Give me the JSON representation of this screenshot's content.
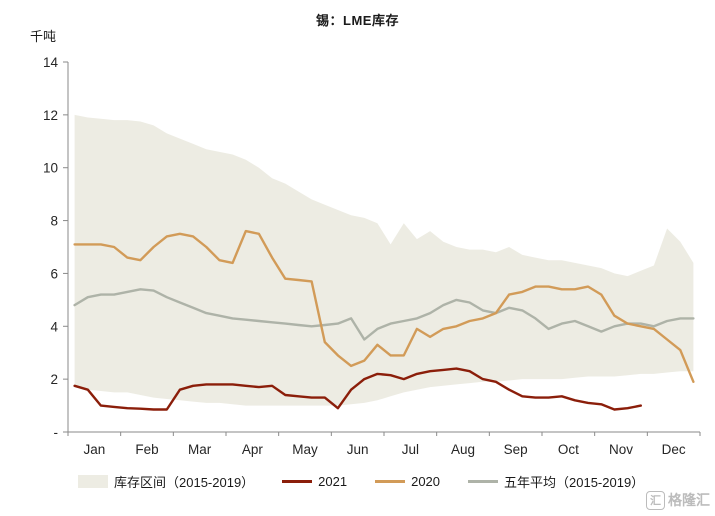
{
  "title": "锡：LME库存",
  "unit_label": "千吨",
  "colors": {
    "band": "#edece3",
    "s2021": "#8b1e0a",
    "s2020": "#d29b58",
    "avg": "#aeb3a8",
    "axis": "#8a8a8a"
  },
  "legend": [
    {
      "label": "库存区间（2015-2019）",
      "type": "band",
      "color_key": "band"
    },
    {
      "label": "2021",
      "type": "line",
      "color_key": "s2021"
    },
    {
      "label": "2020",
      "type": "line",
      "color_key": "s2020"
    },
    {
      "label": "五年平均（2015-2019）",
      "type": "line",
      "color_key": "avg"
    }
  ],
  "watermark": {
    "icon_char": "汇",
    "text": "格隆汇"
  },
  "chart_data": {
    "type": "line",
    "title": "锡：LME库存",
    "xlabel": "",
    "ylabel": "千吨",
    "ylim": [
      0,
      14
    ],
    "yticks": [
      0,
      2,
      4,
      6,
      8,
      10,
      12,
      14
    ],
    "ytick_labels": [
      "-",
      "2",
      "4",
      "6",
      "8",
      "10",
      "12",
      "14"
    ],
    "grid": false,
    "legend_position": "bottom",
    "x_months": [
      "Jan",
      "Feb",
      "Mar",
      "Apr",
      "May",
      "Jun",
      "Jul",
      "Aug",
      "Sep",
      "Oct",
      "Nov",
      "Dec"
    ],
    "points_per_month": 4,
    "band": {
      "name": "库存区间（2015-2019）",
      "upper": [
        12.0,
        11.9,
        11.85,
        11.8,
        11.8,
        11.75,
        11.6,
        11.3,
        11.1,
        10.9,
        10.7,
        10.6,
        10.5,
        10.3,
        10.0,
        9.6,
        9.4,
        9.1,
        8.8,
        8.6,
        8.4,
        8.2,
        8.1,
        7.9,
        7.1,
        7.9,
        7.3,
        7.6,
        7.2,
        7.0,
        6.9,
        6.9,
        6.8,
        7.0,
        6.7,
        6.6,
        6.5,
        6.5,
        6.4,
        6.3,
        6.2,
        6.0,
        5.9,
        6.1,
        6.3,
        7.7,
        7.2,
        6.4
      ],
      "lower": [
        1.7,
        1.6,
        1.55,
        1.5,
        1.5,
        1.4,
        1.3,
        1.25,
        1.2,
        1.15,
        1.1,
        1.1,
        1.05,
        1.0,
        1.0,
        1.0,
        1.0,
        1.0,
        1.0,
        1.0,
        1.0,
        1.05,
        1.1,
        1.2,
        1.35,
        1.5,
        1.6,
        1.7,
        1.75,
        1.8,
        1.85,
        1.9,
        1.9,
        1.95,
        2.0,
        2.0,
        2.0,
        2.0,
        2.05,
        2.1,
        2.1,
        2.1,
        2.15,
        2.2,
        2.2,
        2.25,
        2.3,
        2.3
      ]
    },
    "series": [
      {
        "name": "2021",
        "color": "#8b1e0a",
        "values": [
          1.75,
          1.6,
          1.0,
          0.95,
          0.9,
          0.88,
          0.85,
          0.85,
          1.6,
          1.75,
          1.8,
          1.8,
          1.8,
          1.75,
          1.7,
          1.75,
          1.4,
          1.35,
          1.3,
          1.3,
          0.9,
          1.6,
          2.0,
          2.2,
          2.15,
          2.0,
          2.2,
          2.3,
          2.35,
          2.4,
          2.3,
          2.0,
          1.9,
          1.6,
          1.35,
          1.3,
          1.3,
          1.35,
          1.2,
          1.1,
          1.05,
          0.85,
          0.9,
          1.0,
          null,
          null,
          null,
          null
        ]
      },
      {
        "name": "2020",
        "color": "#d29b58",
        "values": [
          7.1,
          7.1,
          7.1,
          7.0,
          6.6,
          6.5,
          7.0,
          7.4,
          7.5,
          7.4,
          7.0,
          6.5,
          6.4,
          7.6,
          7.5,
          6.6,
          5.8,
          5.75,
          5.7,
          3.4,
          2.9,
          2.5,
          2.7,
          3.3,
          2.9,
          2.9,
          3.9,
          3.6,
          3.9,
          4.0,
          4.2,
          4.3,
          4.5,
          5.2,
          5.3,
          5.5,
          5.5,
          5.4,
          5.4,
          5.5,
          5.2,
          4.4,
          4.1,
          4.0,
          3.9,
          3.5,
          3.1,
          1.9
        ]
      },
      {
        "name": "五年平均（2015-2019）",
        "color": "#aeb3a8",
        "values": [
          4.8,
          5.1,
          5.2,
          5.2,
          5.3,
          5.4,
          5.35,
          5.1,
          4.9,
          4.7,
          4.5,
          4.4,
          4.3,
          4.25,
          4.2,
          4.15,
          4.1,
          4.05,
          4.0,
          4.05,
          4.1,
          4.3,
          3.5,
          3.9,
          4.1,
          4.2,
          4.3,
          4.5,
          4.8,
          5.0,
          4.9,
          4.6,
          4.5,
          4.7,
          4.6,
          4.3,
          3.9,
          4.1,
          4.2,
          4.0,
          3.8,
          4.0,
          4.1,
          4.1,
          4.0,
          4.2,
          4.3,
          4.3
        ]
      }
    ]
  }
}
